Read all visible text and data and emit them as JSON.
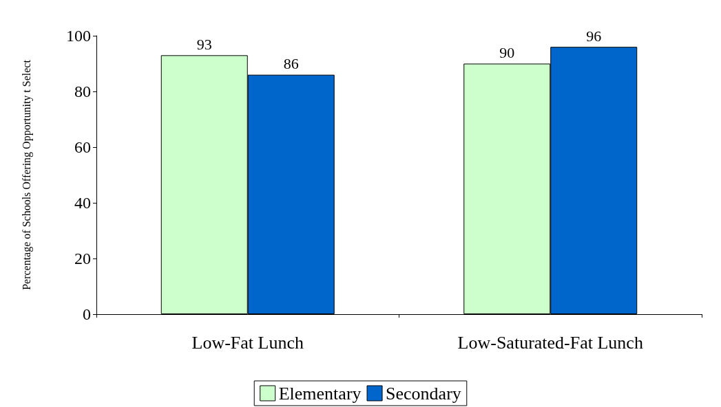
{
  "chart_data": {
    "type": "bar",
    "ylabel": "Percentage of Schools Offering Opportunity t Select",
    "categories": [
      "Low-Fat Lunch",
      "Low-Saturated-Fat Lunch"
    ],
    "series": [
      {
        "name": "Elementary",
        "color": "#ccffcc",
        "values": [
          93,
          90
        ]
      },
      {
        "name": "Secondary",
        "color": "#0066cc",
        "values": [
          86,
          96
        ]
      }
    ],
    "ylim": [
      0,
      100
    ],
    "yticks": [
      0,
      20,
      40,
      60,
      80,
      100
    ],
    "grid": false,
    "legend": "bottom",
    "data_labels": true
  }
}
